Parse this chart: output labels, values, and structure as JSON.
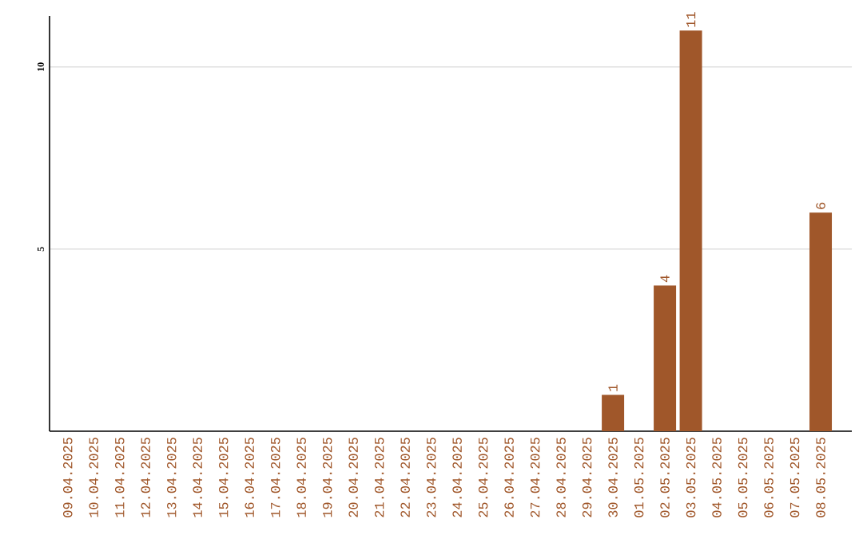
{
  "chart_data": {
    "type": "bar",
    "categories": [
      "09.04.2025",
      "10.04.2025",
      "11.04.2025",
      "12.04.2025",
      "13.04.2025",
      "14.04.2025",
      "15.04.2025",
      "16.04.2025",
      "17.04.2025",
      "18.04.2025",
      "19.04.2025",
      "20.04.2025",
      "21.04.2025",
      "22.04.2025",
      "23.04.2025",
      "24.04.2025",
      "25.04.2025",
      "26.04.2025",
      "27.04.2025",
      "28.04.2025",
      "29.04.2025",
      "30.04.2025",
      "01.05.2025",
      "02.05.2025",
      "03.05.2025",
      "04.05.2025",
      "05.05.2025",
      "06.05.2025",
      "07.05.2025",
      "08.05.2025"
    ],
    "values": [
      0,
      0,
      0,
      0,
      0,
      0,
      0,
      0,
      0,
      0,
      0,
      0,
      0,
      0,
      0,
      0,
      0,
      0,
      0,
      0,
      0,
      1,
      0,
      4,
      11,
      0,
      0,
      0,
      0,
      6
    ],
    "value_labels": [
      null,
      null,
      null,
      null,
      null,
      null,
      null,
      null,
      null,
      null,
      null,
      null,
      null,
      null,
      null,
      null,
      null,
      null,
      null,
      null,
      null,
      "1",
      null,
      "4",
      "11",
      null,
      null,
      null,
      null,
      "6"
    ],
    "color": "#a0572a",
    "ylim": [
      0,
      11.4
    ],
    "yticks": [
      5,
      10
    ],
    "grid": "y"
  }
}
